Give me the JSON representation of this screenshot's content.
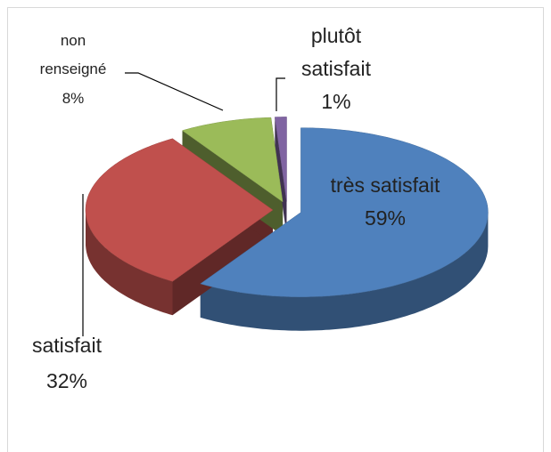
{
  "chart_data": {
    "type": "pie",
    "categories": [
      "très satisfait",
      "satisfait",
      "non renseigné",
      "plutôt satisfait"
    ],
    "values": [
      59,
      32,
      8,
      1
    ],
    "value_labels": [
      "59%",
      "32%",
      "8%",
      "1%"
    ],
    "colors": [
      "#4f81bd",
      "#c0504d",
      "#9bbb59",
      "#8064a2"
    ]
  }
}
